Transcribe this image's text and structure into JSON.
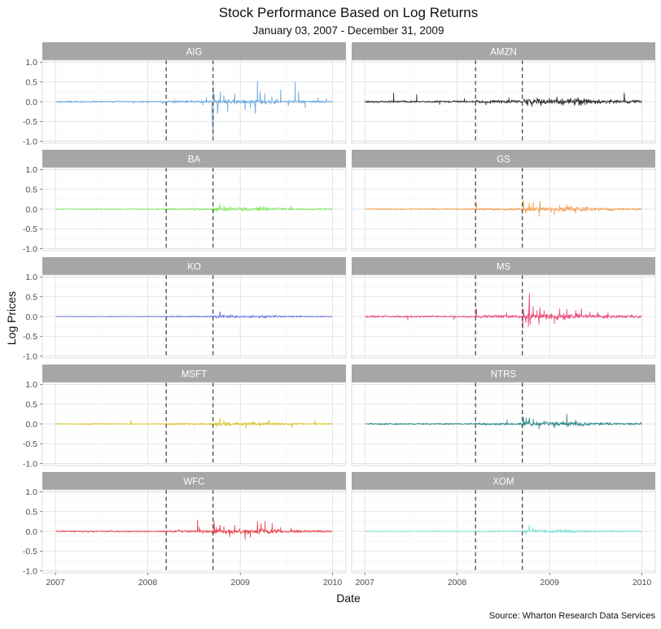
{
  "chart_data": {
    "type": "line",
    "facet_layout": "5 rows x 2 columns",
    "title": "Stock Performance Based on Log Returns",
    "subtitle": "January 03, 2007 - December 31, 2009",
    "xlabel": "Date",
    "ylabel": "Log Prices",
    "caption": "Source: Wharton Research Data Services",
    "x_range": [
      "2007-01-03",
      "2009-12-31"
    ],
    "ylim": [
      -1.05,
      1.05
    ],
    "x_ticks": [
      {
        "value": "2007-01-01",
        "label": "2007"
      },
      {
        "value": "2008-01-01",
        "label": "2008"
      },
      {
        "value": "2009-01-01",
        "label": "2009"
      },
      {
        "value": "2010-01-01",
        "label": "2010"
      }
    ],
    "y_ticks": [
      {
        "value": 1.0,
        "label": "1.0"
      },
      {
        "value": 0.5,
        "label": "0.5"
      },
      {
        "value": 0.0,
        "label": "0.0"
      },
      {
        "value": -0.5,
        "label": "-0.5"
      },
      {
        "value": -1.0,
        "label": "-1.0"
      }
    ],
    "reference_lines": [
      {
        "date": "2008-03-14",
        "style": "dashed",
        "color": "#555555"
      },
      {
        "date": "2008-09-15",
        "style": "dashed",
        "color": "#555555"
      }
    ],
    "grid": true,
    "legend": "none",
    "strip_color": "#a6a6a6",
    "series": [
      {
        "name": "AIG",
        "color": "#6fa8dc",
        "base_amp": 0.012,
        "events": [
          {
            "date": "2007-02-20",
            "value": 0.02
          },
          {
            "date": "2007-11-08",
            "value": -0.04
          },
          {
            "date": "2008-02-28",
            "value": -0.05
          },
          {
            "date": "2008-04-15",
            "value": 0.05
          },
          {
            "date": "2008-06-20",
            "value": 0.04
          },
          {
            "date": "2008-08-06",
            "value": -0.08
          },
          {
            "date": "2008-08-20",
            "value": 0.1
          },
          {
            "date": "2008-09-12",
            "value": -0.33
          },
          {
            "date": "2008-09-15",
            "value": -0.85
          },
          {
            "date": "2008-09-16",
            "value": -0.55
          },
          {
            "date": "2008-09-17",
            "value": 0.38
          },
          {
            "date": "2008-09-19",
            "value": 0.2
          },
          {
            "date": "2008-10-03",
            "value": -0.3
          },
          {
            "date": "2008-10-14",
            "value": 0.25
          },
          {
            "date": "2008-10-28",
            "value": 0.15
          },
          {
            "date": "2008-11-12",
            "value": -0.25
          },
          {
            "date": "2008-12-10",
            "value": 0.2
          },
          {
            "date": "2009-01-20",
            "value": -0.2
          },
          {
            "date": "2009-02-10",
            "value": -0.15
          },
          {
            "date": "2009-03-02",
            "value": -0.3
          },
          {
            "date": "2009-03-10",
            "value": 0.51
          },
          {
            "date": "2009-03-20",
            "value": 0.25
          },
          {
            "date": "2009-04-08",
            "value": 0.2
          },
          {
            "date": "2009-05-06",
            "value": 0.12
          },
          {
            "date": "2009-06-10",
            "value": 0.3
          },
          {
            "date": "2009-07-10",
            "value": -0.1
          },
          {
            "date": "2009-08-06",
            "value": 0.5
          },
          {
            "date": "2009-08-20",
            "value": 0.25
          },
          {
            "date": "2009-09-15",
            "value": -0.15
          },
          {
            "date": "2009-11-05",
            "value": 0.1
          },
          {
            "date": "2009-12-08",
            "value": 0.08
          }
        ]
      },
      {
        "name": "AMZN",
        "color": "#333333",
        "base_amp": 0.018,
        "events": [
          {
            "date": "2007-04-25",
            "value": 0.22
          },
          {
            "date": "2007-07-25",
            "value": 0.18
          },
          {
            "date": "2007-10-24",
            "value": -0.07
          },
          {
            "date": "2008-01-30",
            "value": 0.08
          },
          {
            "date": "2008-04-24",
            "value": -0.08
          },
          {
            "date": "2008-07-24",
            "value": 0.1
          },
          {
            "date": "2008-10-06",
            "value": -0.1
          },
          {
            "date": "2008-10-23",
            "value": -0.12
          },
          {
            "date": "2008-11-13",
            "value": 0.1
          },
          {
            "date": "2009-01-30",
            "value": 0.12
          },
          {
            "date": "2009-04-24",
            "value": 0.1
          },
          {
            "date": "2009-10-23",
            "value": 0.22
          }
        ]
      },
      {
        "name": "BA",
        "color": "#88e868",
        "base_amp": 0.01,
        "events": [
          {
            "date": "2008-09-29",
            "value": -0.06
          },
          {
            "date": "2008-10-13",
            "value": 0.13
          },
          {
            "date": "2008-10-28",
            "value": 0.08
          },
          {
            "date": "2008-11-21",
            "value": 0.06
          },
          {
            "date": "2009-03-23",
            "value": 0.07
          },
          {
            "date": "2009-07-22",
            "value": 0.08
          }
        ]
      },
      {
        "name": "GS",
        "color": "#f4a052",
        "base_amp": 0.012,
        "events": [
          {
            "date": "2008-03-18",
            "value": 0.15
          },
          {
            "date": "2008-09-15",
            "value": -0.12
          },
          {
            "date": "2008-09-19",
            "value": 0.22
          },
          {
            "date": "2008-09-29",
            "value": -0.1
          },
          {
            "date": "2008-10-13",
            "value": 0.15
          },
          {
            "date": "2008-10-28",
            "value": 0.18
          },
          {
            "date": "2008-11-20",
            "value": -0.18
          },
          {
            "date": "2008-11-24",
            "value": 0.2
          },
          {
            "date": "2009-01-20",
            "value": -0.15
          },
          {
            "date": "2009-02-10",
            "value": 0.1
          },
          {
            "date": "2009-03-10",
            "value": 0.12
          },
          {
            "date": "2009-04-14",
            "value": -0.1
          }
        ]
      },
      {
        "name": "KO",
        "color": "#6b74e0",
        "base_amp": 0.007,
        "events": [
          {
            "date": "2008-09-29",
            "value": -0.05
          },
          {
            "date": "2008-10-13",
            "value": 0.12
          },
          {
            "date": "2008-10-28",
            "value": 0.05
          },
          {
            "date": "2008-11-24",
            "value": 0.05
          }
        ]
      },
      {
        "name": "MS",
        "color": "#e94d7b",
        "base_amp": 0.016,
        "events": [
          {
            "date": "2007-06-20",
            "value": -0.08
          },
          {
            "date": "2007-12-19",
            "value": -0.07
          },
          {
            "date": "2008-03-17",
            "value": 0.2
          },
          {
            "date": "2008-03-18",
            "value": 0.18
          },
          {
            "date": "2008-07-15",
            "value": 0.1
          },
          {
            "date": "2008-09-16",
            "value": -0.2
          },
          {
            "date": "2008-09-17",
            "value": -0.3
          },
          {
            "date": "2008-09-18",
            "value": 0.2
          },
          {
            "date": "2008-09-19",
            "value": 0.18
          },
          {
            "date": "2008-09-29",
            "value": -0.15
          },
          {
            "date": "2008-10-09",
            "value": -0.26
          },
          {
            "date": "2008-10-13",
            "value": 0.58
          },
          {
            "date": "2008-10-16",
            "value": -0.2
          },
          {
            "date": "2008-10-28",
            "value": 0.25
          },
          {
            "date": "2008-11-12",
            "value": 0.15
          },
          {
            "date": "2008-11-20",
            "value": -0.2
          },
          {
            "date": "2008-11-24",
            "value": 0.22
          },
          {
            "date": "2008-12-10",
            "value": 0.15
          },
          {
            "date": "2009-01-20",
            "value": -0.18
          },
          {
            "date": "2009-02-10",
            "value": 0.2
          },
          {
            "date": "2009-03-10",
            "value": 0.18
          },
          {
            "date": "2009-04-14",
            "value": 0.15
          },
          {
            "date": "2009-05-07",
            "value": 0.2
          },
          {
            "date": "2009-06-10",
            "value": 0.12
          },
          {
            "date": "2009-07-10",
            "value": 0.1
          },
          {
            "date": "2009-08-20",
            "value": 0.1
          }
        ]
      },
      {
        "name": "MSFT",
        "color": "#d8c732",
        "base_amp": 0.009,
        "events": [
          {
            "date": "2007-10-26",
            "value": 0.09
          },
          {
            "date": "2008-09-29",
            "value": -0.07
          },
          {
            "date": "2008-10-13",
            "value": 0.15
          },
          {
            "date": "2008-10-28",
            "value": 0.1
          },
          {
            "date": "2009-01-23",
            "value": -0.1
          },
          {
            "date": "2009-04-24",
            "value": 0.1
          },
          {
            "date": "2009-07-24",
            "value": -0.08
          },
          {
            "date": "2009-10-23",
            "value": 0.08
          }
        ]
      },
      {
        "name": "NTRS",
        "color": "#2b8a88",
        "base_amp": 0.012,
        "events": [
          {
            "date": "2008-07-17",
            "value": 0.1
          },
          {
            "date": "2008-09-15",
            "value": -0.1
          },
          {
            "date": "2008-09-19",
            "value": 0.18
          },
          {
            "date": "2008-09-30",
            "value": 0.15
          },
          {
            "date": "2008-10-13",
            "value": 0.15
          },
          {
            "date": "2008-10-28",
            "value": 0.12
          },
          {
            "date": "2008-11-20",
            "value": -0.12
          },
          {
            "date": "2008-12-10",
            "value": 0.08
          },
          {
            "date": "2009-01-20",
            "value": -0.1
          },
          {
            "date": "2009-03-10",
            "value": 0.25
          },
          {
            "date": "2009-04-14",
            "value": 0.1
          }
        ]
      },
      {
        "name": "WFC",
        "color": "#e8424c",
        "base_amp": 0.012,
        "events": [
          {
            "date": "2008-05-02",
            "value": 0.05
          },
          {
            "date": "2008-07-16",
            "value": 0.28
          },
          {
            "date": "2008-07-23",
            "value": 0.1
          },
          {
            "date": "2008-08-06",
            "value": -0.05
          },
          {
            "date": "2008-09-15",
            "value": -0.1
          },
          {
            "date": "2008-09-19",
            "value": 0.25
          },
          {
            "date": "2008-09-29",
            "value": 0.1
          },
          {
            "date": "2008-10-13",
            "value": 0.15
          },
          {
            "date": "2008-10-28",
            "value": 0.12
          },
          {
            "date": "2008-11-20",
            "value": -0.14
          },
          {
            "date": "2008-12-10",
            "value": 0.15
          },
          {
            "date": "2009-01-20",
            "value": -0.2
          },
          {
            "date": "2009-02-10",
            "value": -0.15
          },
          {
            "date": "2009-03-10",
            "value": 0.25
          },
          {
            "date": "2009-03-24",
            "value": 0.2
          },
          {
            "date": "2009-04-09",
            "value": 0.25
          },
          {
            "date": "2009-05-07",
            "value": 0.2
          },
          {
            "date": "2009-06-10",
            "value": 0.1
          },
          {
            "date": "2009-07-22",
            "value": 0.08
          }
        ]
      },
      {
        "name": "XOM",
        "color": "#7fe0d2",
        "base_amp": 0.008,
        "events": [
          {
            "date": "2008-09-29",
            "value": -0.08
          },
          {
            "date": "2008-10-13",
            "value": 0.15
          },
          {
            "date": "2008-10-28",
            "value": 0.1
          },
          {
            "date": "2008-11-21",
            "value": 0.05
          }
        ]
      }
    ]
  }
}
